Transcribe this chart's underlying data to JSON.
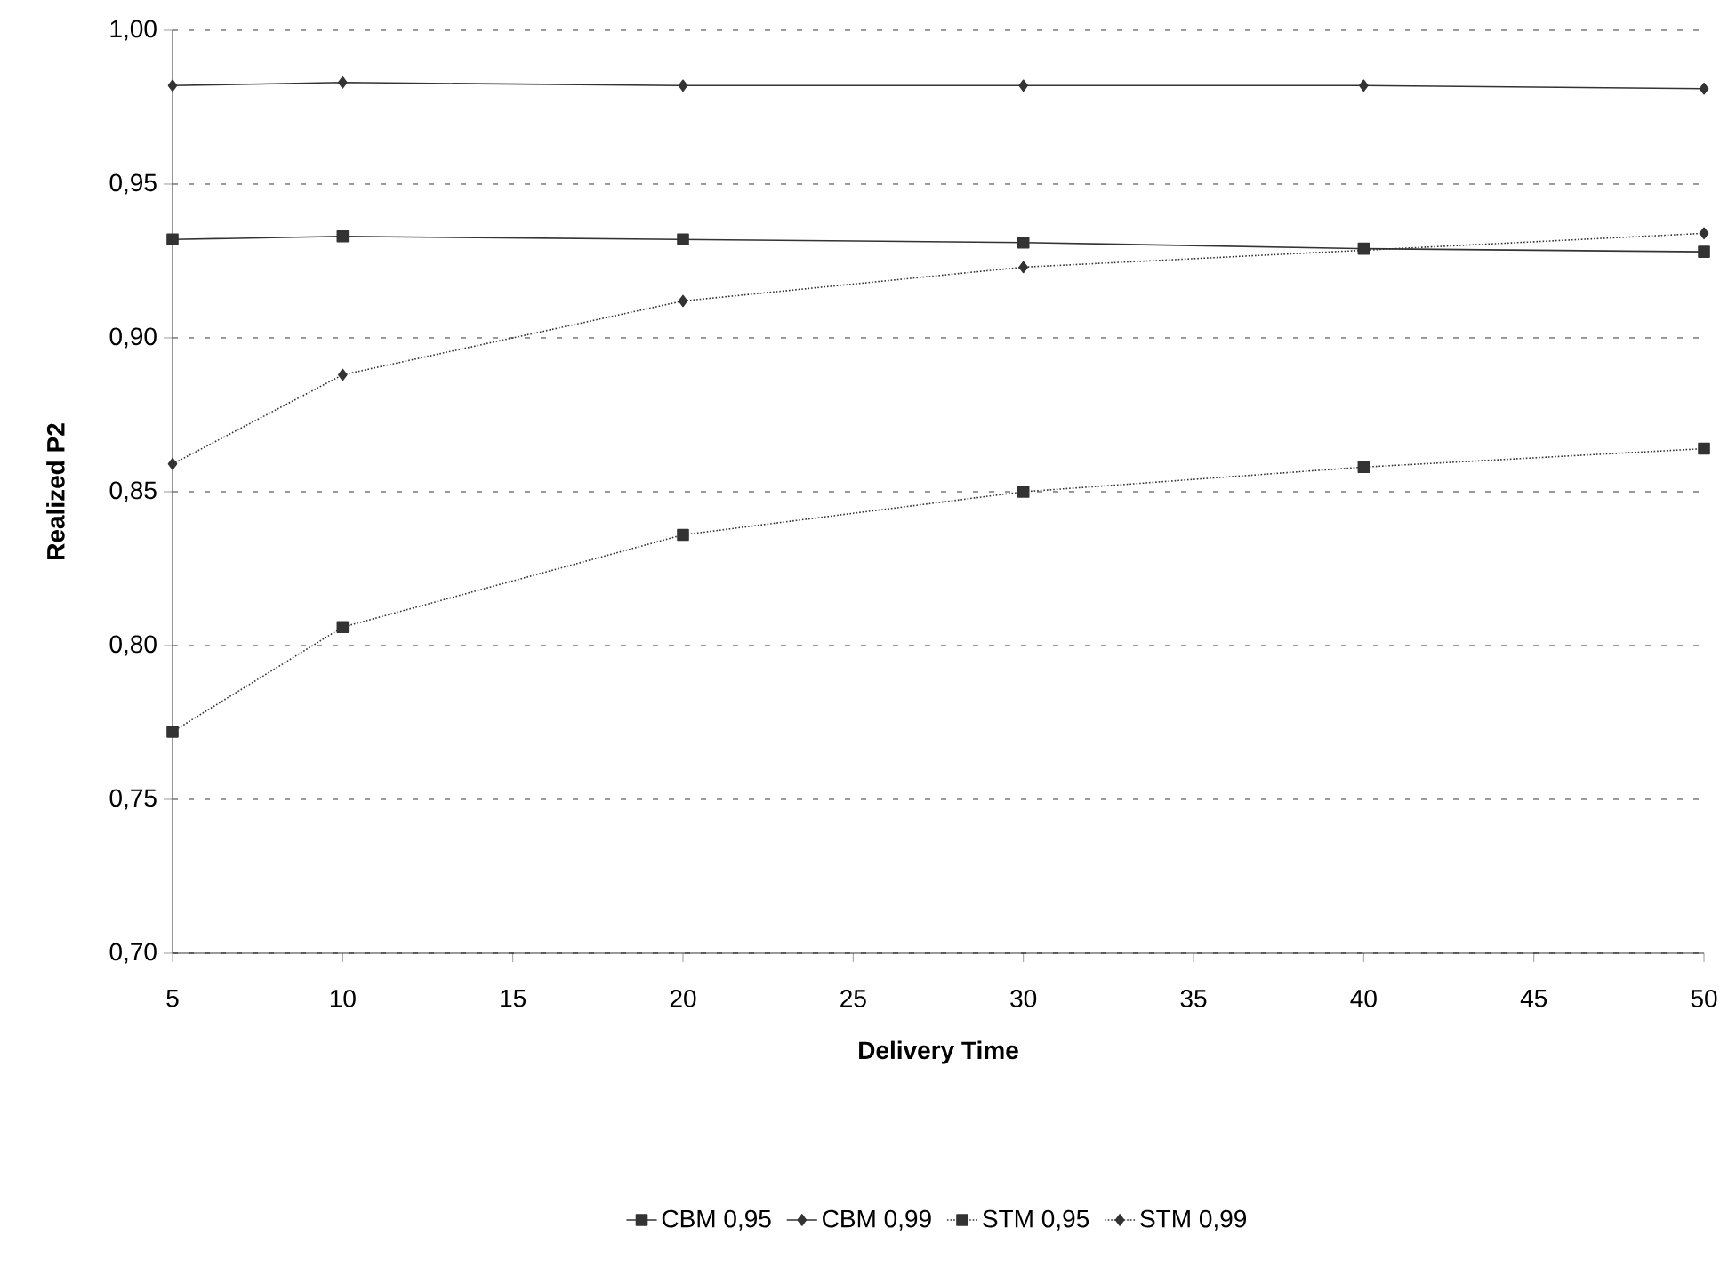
{
  "chart_data": {
    "type": "line",
    "xlabel": "Delivery Time",
    "ylabel": "Realized P2",
    "x": [
      5,
      10,
      20,
      30,
      40,
      50
    ],
    "series": [
      {
        "name": "CBM 0,95",
        "color": "#333333",
        "marker": "square",
        "line_style": "solid",
        "values": [
          0.932,
          0.933,
          0.932,
          0.931,
          0.929,
          0.928
        ]
      },
      {
        "name": "CBM 0,99",
        "color": "#333333",
        "marker": "diamond",
        "line_style": "solid",
        "values": [
          0.982,
          0.983,
          0.982,
          0.982,
          0.982,
          0.981
        ]
      },
      {
        "name": "STM 0,95",
        "color": "#333333",
        "marker": "square",
        "line_style": "dotted",
        "values": [
          0.772,
          0.806,
          0.836,
          0.85,
          0.858,
          0.864
        ]
      },
      {
        "name": "STM 0,99",
        "color": "#333333",
        "marker": "diamond",
        "line_style": "dotted",
        "values": [
          0.859,
          0.888,
          0.912,
          0.923,
          null,
          0.934
        ]
      }
    ],
    "xlim": [
      5,
      50
    ],
    "xticks": [
      5,
      10,
      15,
      20,
      25,
      30,
      35,
      40,
      45,
      50
    ],
    "ylim": [
      0.7,
      1.0
    ],
    "yticks": [
      {
        "value": 0.7,
        "label": "0,70"
      },
      {
        "value": 0.75,
        "label": "0,75"
      },
      {
        "value": 0.8,
        "label": "0,80"
      },
      {
        "value": 0.85,
        "label": "0,85"
      },
      {
        "value": 0.9,
        "label": "0,90"
      },
      {
        "value": 0.95,
        "label": "0,95"
      },
      {
        "value": 1.0,
        "label": "1,00"
      }
    ],
    "grid": "y",
    "legend": "bottom"
  }
}
